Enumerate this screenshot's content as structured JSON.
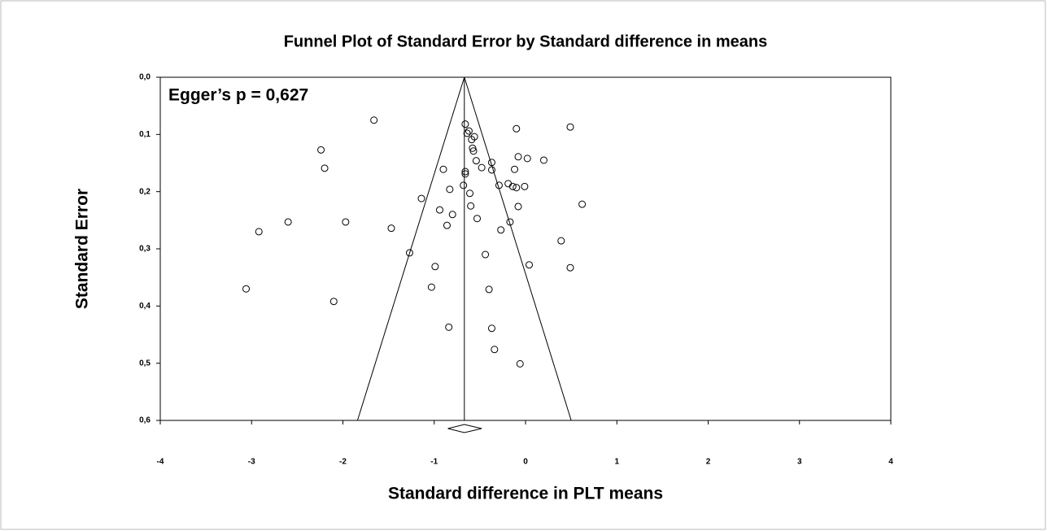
{
  "chart_data": {
    "type": "scatter",
    "title": "Funnel Plot of Standard Error by Standard difference in means",
    "x_label": "Standard difference in PLT means",
    "y_label": "Standard Error",
    "annotation": "Egger’s p = 0,627",
    "xlim": [
      -4,
      4
    ],
    "xticks": [
      -4,
      -3,
      -2,
      -1,
      0,
      1,
      2,
      3,
      4
    ],
    "ylim": [
      0,
      0.6
    ],
    "y_inverted": true,
    "yticks": [
      {
        "value": 0,
        "label": "0,0"
      },
      {
        "value": 0.1,
        "label": "0,1"
      },
      {
        "value": 0.2,
        "label": "0,2"
      },
      {
        "value": 0.3,
        "label": "0,3"
      },
      {
        "value": 0.4,
        "label": "0,4"
      },
      {
        "value": 0.5,
        "label": "0,5"
      },
      {
        "value": 0.6,
        "label": "0,6"
      }
    ],
    "color": "#000000",
    "funnel": {
      "apex": [
        -0.67,
        0
      ],
      "left_end": [
        -1.84,
        0.6
      ],
      "right_end": [
        0.5,
        0.6
      ]
    },
    "summary": {
      "estimate": -0.67,
      "ci": [
        -0.85,
        -0.48
      ]
    },
    "x": [
      -1.66,
      -2.24,
      -2.2,
      -2.6,
      -2.92,
      -3.06,
      -2.1,
      -1.97,
      -1.47,
      -1.27,
      -1.14,
      -0.9,
      -0.83,
      -0.94,
      -0.8,
      -0.86,
      -0.99,
      -1.03,
      -0.84,
      -0.66,
      -0.62,
      -0.64,
      -0.56,
      -0.59,
      -0.58,
      -0.57,
      -0.54,
      -0.48,
      -0.66,
      -0.66,
      -0.68,
      -0.61,
      -0.6,
      -0.53,
      -0.37,
      -0.37,
      -0.29,
      -0.27,
      -0.44,
      -0.4,
      -0.37,
      -0.34,
      -0.06,
      -0.1,
      -0.08,
      0.02,
      -0.12,
      -0.19,
      -0.14,
      -0.1,
      -0.01,
      -0.08,
      -0.17,
      0.04,
      0.2,
      0.49,
      0.62,
      0.39,
      0.49
    ],
    "values": [
      0.075,
      0.127,
      0.159,
      0.253,
      0.27,
      0.37,
      0.392,
      0.253,
      0.264,
      0.307,
      0.212,
      0.161,
      0.196,
      0.232,
      0.24,
      0.259,
      0.331,
      0.367,
      0.437,
      0.082,
      0.094,
      0.098,
      0.104,
      0.109,
      0.124,
      0.129,
      0.146,
      0.158,
      0.165,
      0.169,
      0.189,
      0.203,
      0.225,
      0.247,
      0.149,
      0.162,
      0.189,
      0.267,
      0.31,
      0.371,
      0.439,
      0.476,
      0.501,
      0.09,
      0.139,
      0.142,
      0.161,
      0.186,
      0.191,
      0.193,
      0.191,
      0.226,
      0.253,
      0.328,
      0.145,
      0.087,
      0.222,
      0.286,
      0.333
    ]
  }
}
